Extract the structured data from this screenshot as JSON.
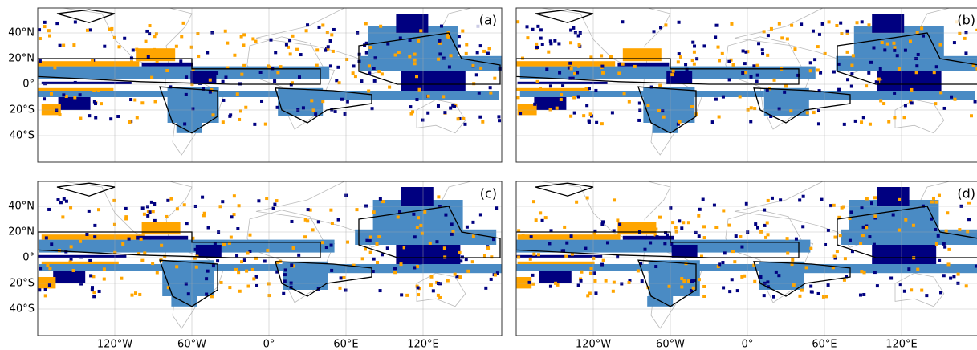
{
  "panels": [
    {
      "label": "(a)"
    },
    {
      "label": "(b)"
    },
    {
      "label": "(c)"
    },
    {
      "label": "(d)"
    }
  ],
  "lat_labels": [
    "40°N",
    "20°N",
    "0°",
    "20°S",
    "40°S"
  ],
  "lon_labels": [
    "120°W",
    "60°W",
    "0°",
    "60°E",
    "120°E"
  ]
}
